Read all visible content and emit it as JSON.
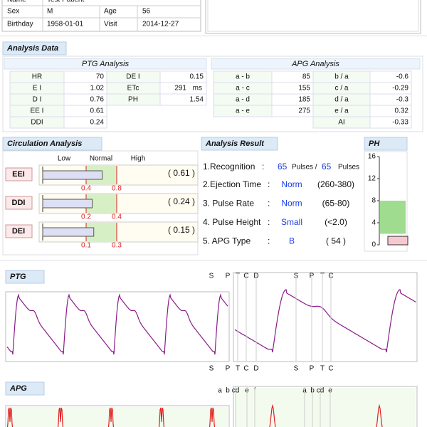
{
  "patient": {
    "name_label": "Name",
    "name": "Test Patient",
    "sex_label": "Sex",
    "sex": "M",
    "age_label": "Age",
    "age": 56,
    "birthday_label": "Birthday",
    "birthday": "1958-01-01",
    "visit_label": "Visit",
    "visit": "2014-12-27"
  },
  "analysis_tab": "Analysis Data",
  "ptg_table": {
    "title": "PTG Analysis",
    "left": [
      [
        "HR",
        70
      ],
      [
        "E I",
        1.02
      ],
      [
        "D I",
        0.76
      ],
      [
        "EE I",
        0.61
      ],
      [
        "DDI",
        0.24
      ]
    ],
    "right": [
      [
        "DE I",
        0.15
      ],
      [
        "ETc",
        291,
        "ms"
      ],
      [
        "PH",
        1.54
      ]
    ]
  },
  "apg_table": {
    "title": "APG Analysis",
    "left": [
      [
        "a - b",
        85
      ],
      [
        "a - c",
        155
      ],
      [
        "a - d",
        185
      ],
      [
        "a - e",
        275
      ]
    ],
    "right": [
      [
        "b / a",
        -0.6
      ],
      [
        "c / a",
        -0.29
      ],
      [
        "d / a",
        -0.3
      ],
      [
        "e / a",
        0.32
      ],
      [
        "AI",
        -0.33
      ]
    ]
  },
  "circulation": {
    "title": "Circulation Analysis",
    "headers": [
      "Low",
      "Normal",
      "High"
    ],
    "items": [
      {
        "name": "EEI",
        "value": 0.61,
        "value_label": "( 0.61 )",
        "ticks": [
          0.4,
          0.8
        ]
      },
      {
        "name": "DDI",
        "value": 0.24,
        "value_label": "( 0.24 )",
        "ticks": [
          0.2,
          0.4
        ]
      },
      {
        "name": "DEI",
        "value": 0.15,
        "value_label": "( 0.15 )",
        "ticks": [
          0.1,
          0.3
        ]
      }
    ]
  },
  "result": {
    "title": "Analysis Result",
    "recognition": [
      "1.Recognition",
      ":",
      65,
      "Pulses /",
      65,
      "Pulses"
    ],
    "lines": [
      [
        "2.Ejection Time",
        ":",
        "Norm",
        "(260-380)"
      ],
      [
        "3. Pulse Rate",
        ":",
        "Norm",
        "(65-80)"
      ],
      [
        "4. Pulse Height",
        ":",
        "Small",
        "(<2.0)"
      ],
      [
        "5. APG Type",
        ":",
        "B",
        "( 54 )"
      ]
    ]
  },
  "ph_chart": {
    "type": "bar",
    "title": "PH",
    "ylim": [
      0,
      16
    ],
    "yticks": [
      0,
      4,
      8,
      12,
      16
    ],
    "normal_range": [
      2,
      8
    ],
    "bar_color": "#f8c8d0",
    "band_color": "#9fdc8f"
  },
  "ptg_wave": {
    "title": "PTG",
    "top": [
      "S",
      "P",
      "T",
      "C",
      "D",
      "S",
      "P",
      "T",
      "C"
    ],
    "bottom": [
      "S",
      "P",
      "T",
      "C",
      "D",
      "S",
      "P",
      "T",
      "C"
    ]
  },
  "apg_wave": {
    "title": "APG",
    "top": [
      "a",
      "b",
      "cd",
      "e",
      "f",
      "a",
      "b",
      "cd",
      "e"
    ]
  }
}
